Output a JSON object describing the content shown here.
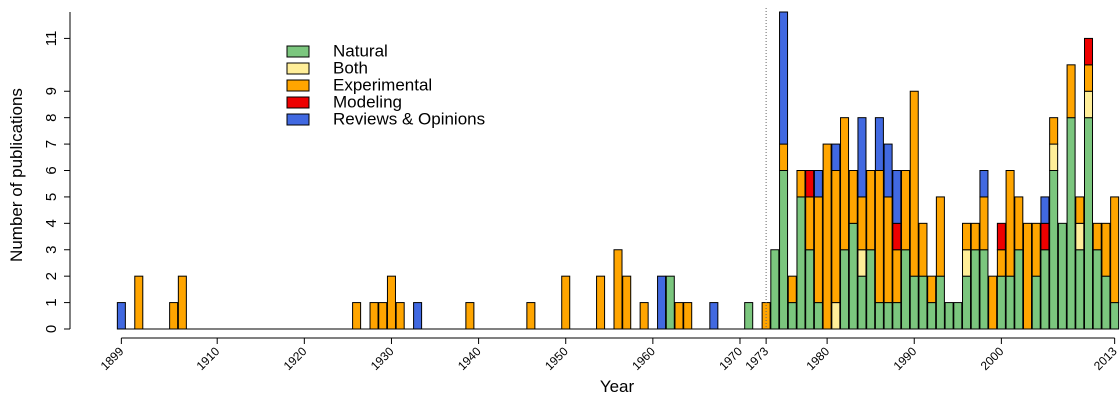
{
  "chart_data": {
    "type": "stacked_bar",
    "xlabel": "Year",
    "ylabel": "Number of publications",
    "x": [
      1899,
      1900,
      1901,
      1902,
      1903,
      1904,
      1905,
      1906,
      1907,
      1908,
      1909,
      1910,
      1911,
      1912,
      1913,
      1914,
      1915,
      1916,
      1917,
      1918,
      1919,
      1920,
      1921,
      1922,
      1923,
      1924,
      1925,
      1926,
      1927,
      1928,
      1929,
      1930,
      1931,
      1932,
      1933,
      1934,
      1935,
      1936,
      1937,
      1938,
      1939,
      1940,
      1941,
      1942,
      1943,
      1944,
      1945,
      1946,
      1947,
      1948,
      1949,
      1950,
      1951,
      1952,
      1953,
      1954,
      1955,
      1956,
      1957,
      1958,
      1959,
      1960,
      1961,
      1962,
      1963,
      1964,
      1965,
      1966,
      1967,
      1968,
      1969,
      1970,
      1971,
      1972,
      1973,
      1974,
      1975,
      1976,
      1977,
      1978,
      1979,
      1980,
      1981,
      1982,
      1983,
      1984,
      1985,
      1986,
      1987,
      1988,
      1989,
      1990,
      1991,
      1992,
      1993,
      1994,
      1995,
      1996,
      1997,
      1998,
      1999,
      2000,
      2001,
      2002,
      2003,
      2004,
      2005,
      2006,
      2007,
      2008,
      2009,
      2010,
      2011,
      2012,
      2013
    ],
    "series": [
      {
        "name": "Natural",
        "color": "#7bc67e",
        "values": [
          0,
          0,
          0,
          0,
          0,
          0,
          0,
          0,
          0,
          0,
          0,
          0,
          0,
          0,
          0,
          0,
          0,
          0,
          0,
          0,
          0,
          0,
          0,
          0,
          0,
          0,
          0,
          0,
          0,
          0,
          0,
          0,
          0,
          0,
          0,
          0,
          0,
          0,
          0,
          0,
          0,
          0,
          0,
          0,
          0,
          0,
          0,
          0,
          0,
          0,
          0,
          0,
          0,
          0,
          0,
          0,
          0,
          0,
          0,
          0,
          0,
          0,
          0,
          2,
          0,
          0,
          0,
          0,
          0,
          0,
          0,
          0,
          1,
          0,
          0,
          3,
          6,
          1,
          5,
          3,
          1,
          0,
          0,
          3,
          4,
          2,
          3,
          1,
          1,
          1,
          3,
          2,
          2,
          1,
          2,
          1,
          1,
          2,
          3,
          3,
          0,
          2,
          2,
          3,
          0,
          2,
          3,
          6,
          4,
          8,
          3,
          8,
          3,
          2,
          1
        ]
      },
      {
        "name": "Both",
        "color": "#ffee99",
        "values": [
          0,
          0,
          0,
          0,
          0,
          0,
          0,
          0,
          0,
          0,
          0,
          0,
          0,
          0,
          0,
          0,
          0,
          0,
          0,
          0,
          0,
          0,
          0,
          0,
          0,
          0,
          0,
          0,
          0,
          0,
          0,
          0,
          0,
          0,
          0,
          0,
          0,
          0,
          0,
          0,
          0,
          0,
          0,
          0,
          0,
          0,
          0,
          0,
          0,
          0,
          0,
          0,
          0,
          0,
          0,
          0,
          0,
          0,
          0,
          0,
          0,
          0,
          0,
          0,
          0,
          0,
          0,
          0,
          0,
          0,
          0,
          0,
          0,
          0,
          0,
          0,
          0,
          0,
          0,
          0,
          0,
          0,
          1,
          0,
          0,
          1,
          0,
          0,
          0,
          0,
          0,
          0,
          0,
          0,
          0,
          0,
          0,
          1,
          0,
          0,
          0,
          0,
          0,
          0,
          0,
          0,
          0,
          1,
          0,
          0,
          1,
          1,
          0,
          0,
          0
        ]
      },
      {
        "name": "Experimental",
        "color": "#ffa500",
        "values": [
          0,
          0,
          2,
          0,
          0,
          0,
          1,
          2,
          0,
          0,
          0,
          0,
          0,
          0,
          0,
          0,
          0,
          0,
          0,
          0,
          0,
          0,
          0,
          0,
          0,
          0,
          0,
          1,
          0,
          1,
          1,
          2,
          1,
          0,
          0,
          0,
          0,
          0,
          0,
          0,
          1,
          0,
          0,
          0,
          0,
          0,
          0,
          1,
          0,
          0,
          0,
          2,
          0,
          0,
          0,
          2,
          0,
          3,
          2,
          0,
          1,
          0,
          0,
          0,
          1,
          1,
          0,
          0,
          0,
          0,
          0,
          0,
          0,
          0,
          1,
          0,
          1,
          1,
          1,
          2,
          4,
          7,
          5,
          5,
          2,
          2,
          3,
          5,
          4,
          2,
          3,
          7,
          2,
          1,
          3,
          0,
          0,
          1,
          1,
          2,
          2,
          1,
          4,
          2,
          4,
          2,
          0,
          1,
          0,
          2,
          1,
          1,
          1,
          2,
          4
        ]
      },
      {
        "name": "Modeling",
        "color": "#ee0000",
        "values": [
          0,
          0,
          0,
          0,
          0,
          0,
          0,
          0,
          0,
          0,
          0,
          0,
          0,
          0,
          0,
          0,
          0,
          0,
          0,
          0,
          0,
          0,
          0,
          0,
          0,
          0,
          0,
          0,
          0,
          0,
          0,
          0,
          0,
          0,
          0,
          0,
          0,
          0,
          0,
          0,
          0,
          0,
          0,
          0,
          0,
          0,
          0,
          0,
          0,
          0,
          0,
          0,
          0,
          0,
          0,
          0,
          0,
          0,
          0,
          0,
          0,
          0,
          0,
          0,
          0,
          0,
          0,
          0,
          0,
          0,
          0,
          0,
          0,
          0,
          0,
          0,
          0,
          0,
          0,
          1,
          0,
          0,
          0,
          0,
          0,
          0,
          0,
          0,
          0,
          1,
          0,
          0,
          0,
          0,
          0,
          0,
          0,
          0,
          0,
          0,
          0,
          1,
          0,
          0,
          0,
          0,
          1,
          0,
          0,
          0,
          0,
          1,
          0,
          0,
          0
        ]
      },
      {
        "name": "Reviews & Opinions",
        "color": "#4169e1",
        "values": [
          1,
          0,
          0,
          0,
          0,
          0,
          0,
          0,
          0,
          0,
          0,
          0,
          0,
          0,
          0,
          0,
          0,
          0,
          0,
          0,
          0,
          0,
          0,
          0,
          0,
          0,
          0,
          0,
          0,
          0,
          0,
          0,
          0,
          0,
          1,
          0,
          0,
          0,
          0,
          0,
          0,
          0,
          0,
          0,
          0,
          0,
          0,
          0,
          0,
          0,
          0,
          0,
          0,
          0,
          0,
          0,
          0,
          0,
          0,
          0,
          0,
          0,
          2,
          0,
          0,
          0,
          0,
          0,
          1,
          0,
          0,
          0,
          0,
          0,
          0,
          0,
          5,
          0,
          0,
          0,
          1,
          0,
          1,
          0,
          0,
          3,
          0,
          2,
          2,
          2,
          0,
          0,
          0,
          0,
          0,
          0,
          0,
          0,
          0,
          1,
          0,
          0,
          0,
          0,
          0,
          0,
          1,
          0,
          0,
          0,
          0,
          0,
          0,
          0,
          0
        ]
      }
    ],
    "xlim": [
      1898.5,
      2013.5
    ],
    "xticks": [
      1899,
      1910,
      1920,
      1930,
      1940,
      1950,
      1960,
      1970,
      1973,
      1980,
      1990,
      2000,
      2013
    ],
    "ylim": [
      0,
      12
    ],
    "yticks": [
      0,
      1,
      2,
      3,
      4,
      5,
      6,
      7,
      8,
      9,
      11
    ],
    "reference_line_x": 1973,
    "legend": "upper-left"
  }
}
